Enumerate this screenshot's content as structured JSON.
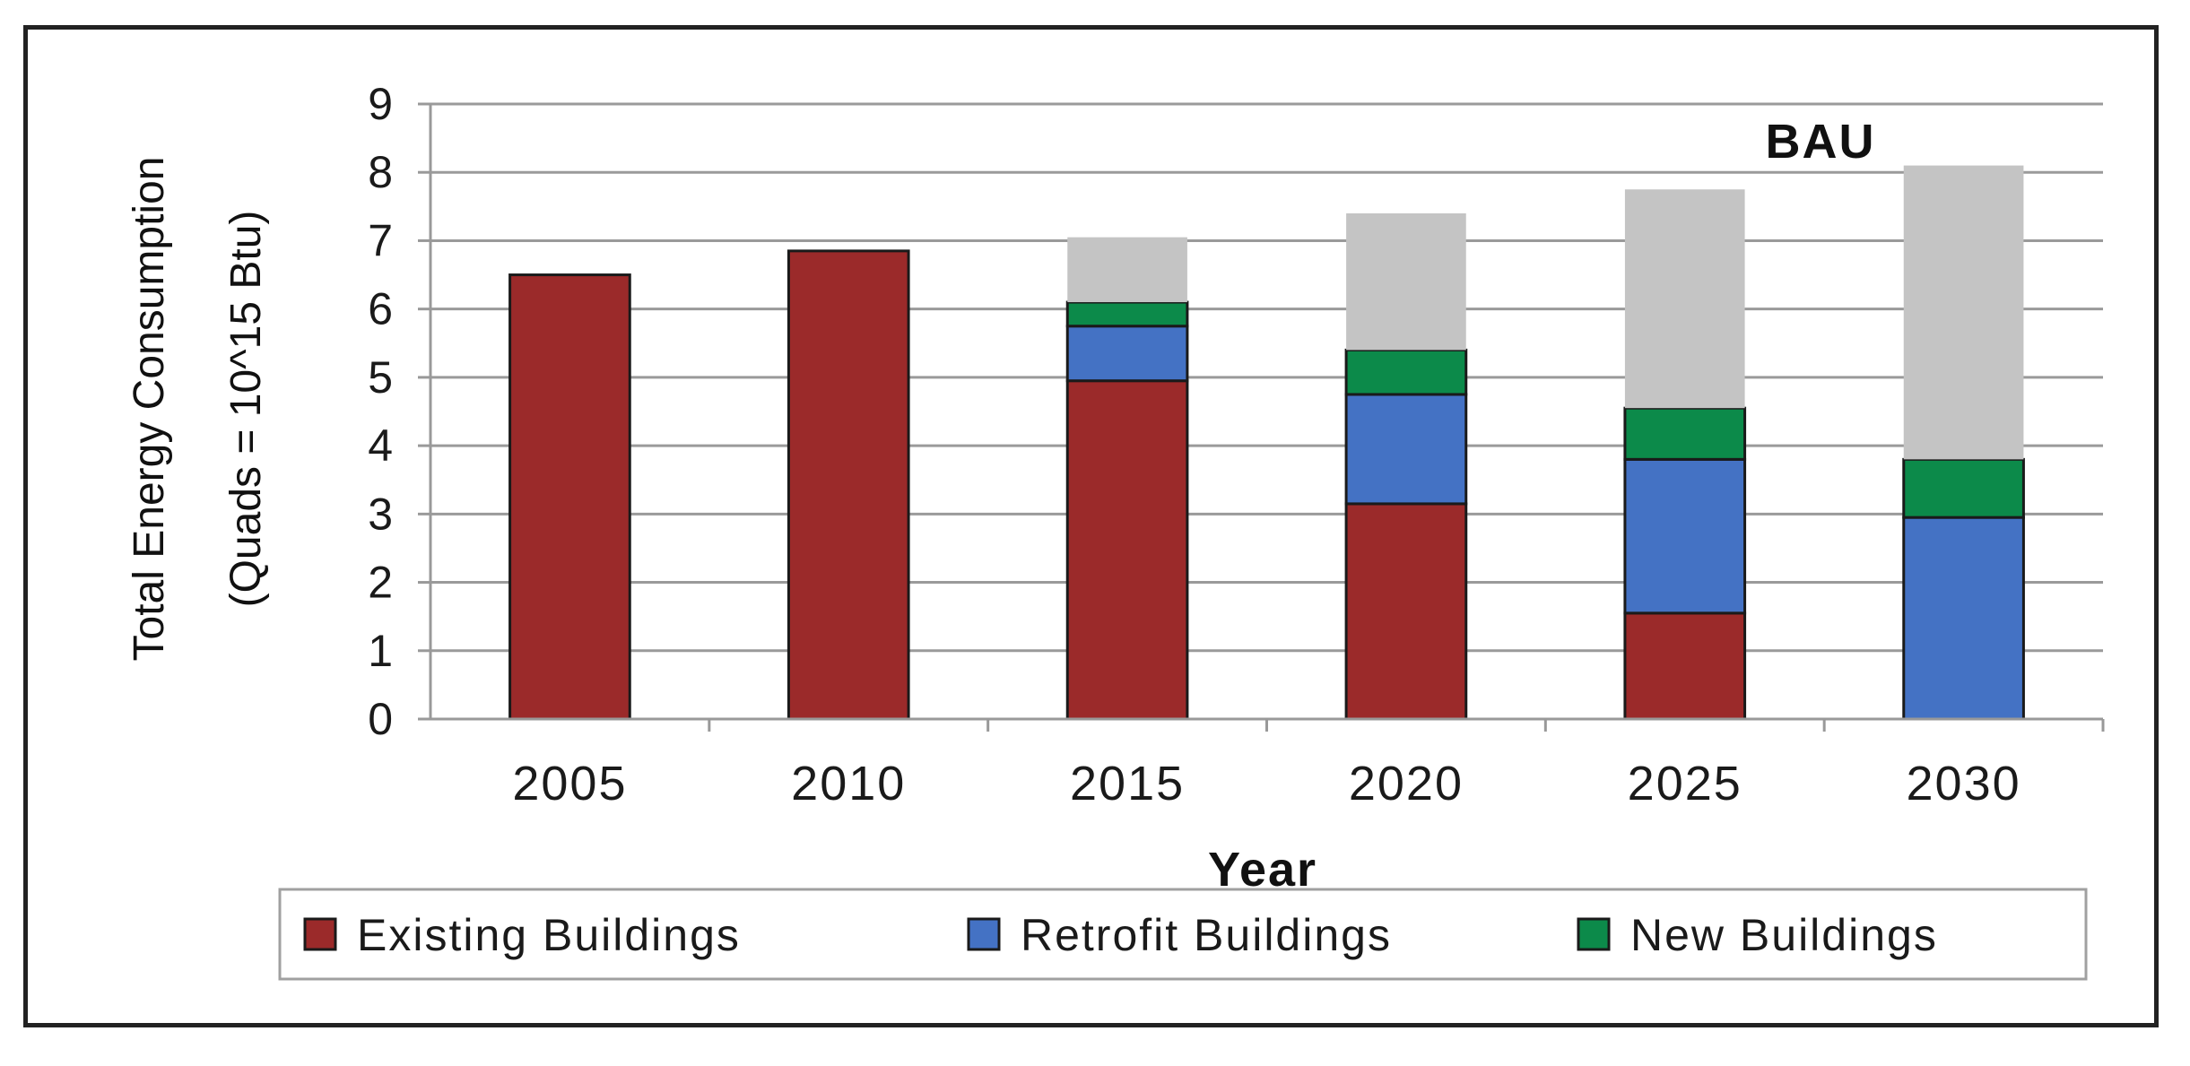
{
  "chart_data": {
    "type": "bar",
    "stacked": true,
    "title": "",
    "annotation": "BAU",
    "xlabel": "Year",
    "ylabel_line1": "Total Energy Consumption",
    "ylabel_line2": "(Quads = 10^15 Btu)",
    "ylim": [
      0,
      9
    ],
    "yticks": [
      0,
      1,
      2,
      3,
      4,
      5,
      6,
      7,
      8,
      9
    ],
    "grid": true,
    "legend_position": "bottom",
    "categories": [
      "2005",
      "2010",
      "2015",
      "2020",
      "2025",
      "2030"
    ],
    "series": [
      {
        "name": "Existing Buildings",
        "color": "#9b2a2a",
        "values": [
          6.5,
          6.85,
          4.95,
          3.15,
          1.55,
          0
        ]
      },
      {
        "name": "Retrofit Buildings",
        "color": "#4472c4",
        "values": [
          0,
          0,
          0.8,
          1.6,
          2.25,
          2.95
        ]
      },
      {
        "name": "New Buildings",
        "color": "#0c8a4a",
        "values": [
          0,
          0,
          0.35,
          0.65,
          0.75,
          0.85
        ]
      },
      {
        "name": "BAU",
        "color": "#c4c4c4",
        "values": [
          0,
          0,
          0.95,
          2.0,
          3.2,
          4.3
        ],
        "in_legend": false
      }
    ]
  }
}
